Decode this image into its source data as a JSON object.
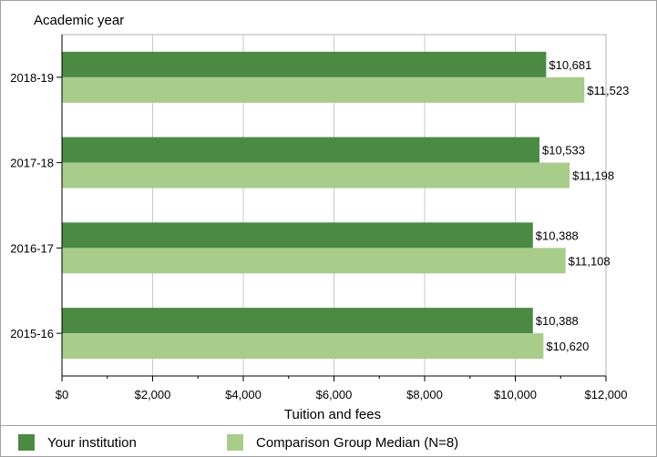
{
  "chart_data": {
    "type": "bar",
    "orientation": "horizontal",
    "ylabel": "Academic year",
    "xlabel": "Tuition and fees",
    "categories": [
      "2018-19",
      "2017-18",
      "2016-17",
      "2015-16"
    ],
    "series": [
      {
        "name": "Your institution",
        "color": "#4a8a43",
        "values": [
          10681,
          10533,
          10388,
          10388
        ],
        "labels": [
          "$10,681",
          "$10,533",
          "$10,388",
          "$10,388"
        ]
      },
      {
        "name": "Comparison Group Median (N=8)",
        "color": "#a8cc8a",
        "values": [
          11523,
          11198,
          11108,
          10620
        ],
        "labels": [
          "$11,523",
          "$11,198",
          "$11,108",
          "$10,620"
        ]
      }
    ],
    "xlim": [
      0,
      12000
    ],
    "xticks": [
      0,
      2000,
      4000,
      6000,
      8000,
      10000,
      12000
    ],
    "xtick_labels": [
      "$0",
      "$2,000",
      "$4,000",
      "$6,000",
      "$8,000",
      "$10,000",
      "$12,000"
    ],
    "grid": true,
    "legend_position": "bottom"
  }
}
